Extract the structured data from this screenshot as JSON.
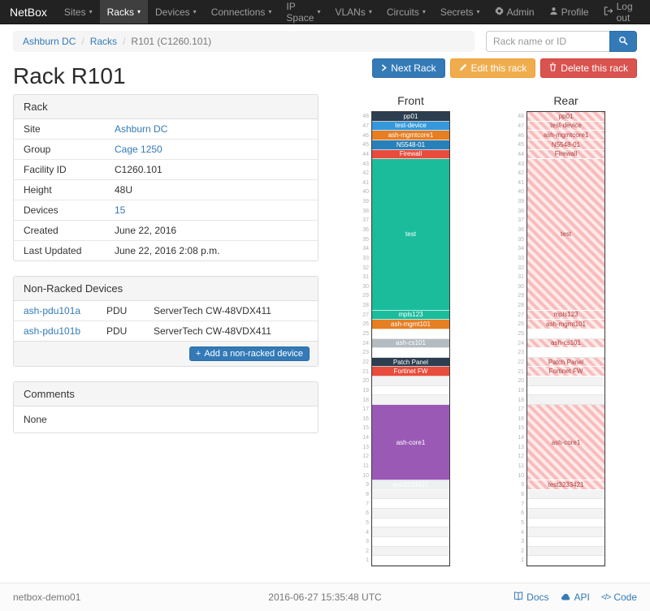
{
  "navbar": {
    "brand": "NetBox",
    "items": [
      {
        "label": "Sites",
        "active": false
      },
      {
        "label": "Racks",
        "active": true
      },
      {
        "label": "Devices",
        "active": false
      },
      {
        "label": "Connections",
        "active": false
      },
      {
        "label": "IP Space",
        "active": false
      },
      {
        "label": "VLANs",
        "active": false
      },
      {
        "label": "Circuits",
        "active": false
      },
      {
        "label": "Secrets",
        "active": false
      }
    ],
    "right_items": [
      {
        "label": "Admin",
        "icon": "gear"
      },
      {
        "label": "Profile",
        "icon": "user"
      },
      {
        "label": "Log out",
        "icon": "logout"
      }
    ]
  },
  "breadcrumb": [
    {
      "label": "Ashburn DC",
      "link": true
    },
    {
      "label": "Racks",
      "link": true
    },
    {
      "label": "R101 (C1260.101)",
      "link": false
    }
  ],
  "search": {
    "placeholder": "Rack name or ID"
  },
  "actions": {
    "next": "Next Rack",
    "edit": "Edit this rack",
    "delete": "Delete this rack"
  },
  "page_title": "Rack R101",
  "rack_panel": {
    "title": "Rack",
    "rows": [
      {
        "label": "Site",
        "value": "Ashburn DC",
        "link": true
      },
      {
        "label": "Group",
        "value": "Cage 1250",
        "link": true
      },
      {
        "label": "Facility ID",
        "value": "C1260.101",
        "link": false
      },
      {
        "label": "Height",
        "value": "48U",
        "link": false
      },
      {
        "label": "Devices",
        "value": "15",
        "link": true
      },
      {
        "label": "Created",
        "value": "June 22, 2016",
        "link": false
      },
      {
        "label": "Last Updated",
        "value": "June 22, 2016 2:08 p.m.",
        "link": false
      }
    ]
  },
  "non_racked": {
    "title": "Non-Racked Devices",
    "rows": [
      {
        "name": "ash-pdu101a",
        "type": "PDU",
        "model": "ServerTech CW-48VDX411"
      },
      {
        "name": "ash-pdu101b",
        "type": "PDU",
        "model": "ServerTech CW-48VDX411"
      }
    ],
    "add_button": "Add a non-racked device"
  },
  "comments": {
    "title": "Comments",
    "body": "None"
  },
  "elevations": {
    "front_title": "Front",
    "rear_title": "Rear",
    "units": 48,
    "hatch_text_color": "#a94442",
    "segments": [
      {
        "type": "device",
        "name": "pp01",
        "units": 1,
        "color": "#2c3e50"
      },
      {
        "type": "device",
        "name": "test-device",
        "units": 1,
        "color": "#3498db"
      },
      {
        "type": "device",
        "name": "ash-mgmtcore1",
        "units": 1,
        "color": "#e67e22"
      },
      {
        "type": "device",
        "name": "N5548-01",
        "units": 1,
        "color": "#2980b9"
      },
      {
        "type": "device",
        "name": "Firewall",
        "units": 1,
        "color": "#e74c3c"
      },
      {
        "type": "device",
        "name": "test",
        "units": 16,
        "color": "#1abc9c"
      },
      {
        "type": "device",
        "name": "mpls123",
        "units": 1,
        "color": "#1abc9c"
      },
      {
        "type": "device",
        "name": "ash-mgmt101",
        "units": 1,
        "color": "#e67e22"
      },
      {
        "type": "empty",
        "units": 1
      },
      {
        "type": "device",
        "name": "ash-cs101",
        "units": 1,
        "color": "#b4bcc2"
      },
      {
        "type": "empty",
        "units": 1
      },
      {
        "type": "device",
        "name": "Patch Panel",
        "units": 1,
        "color": "#2c3e50"
      },
      {
        "type": "device",
        "name": "Fortinet FW",
        "units": 1,
        "color": "#e74c3c"
      },
      {
        "type": "empty",
        "units": 3
      },
      {
        "type": "device",
        "name": "ash-core1",
        "units": 8,
        "color": "#9b59b6"
      },
      {
        "type": "device",
        "name": "test3233421",
        "units": 1,
        "color": "#ecf0f1",
        "fg": "#ffffff"
      },
      {
        "type": "empty",
        "units": 8
      }
    ]
  },
  "footer": {
    "hostname": "netbox-demo01",
    "timestamp": "2016-06-27 15:35:48 UTC",
    "links": [
      {
        "label": "Docs",
        "icon": "book"
      },
      {
        "label": "API",
        "icon": "cloud"
      },
      {
        "label": "Code",
        "icon": "code"
      }
    ]
  }
}
